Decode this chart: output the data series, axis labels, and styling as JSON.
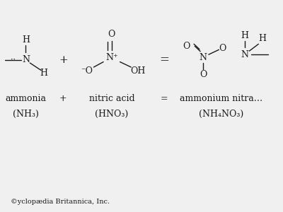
{
  "bg_color": "#f0f0f0",
  "text_color": "#1a1a1a",
  "footer": "©yclopædia Britannica, Inc.",
  "label1_line1": "ammonia",
  "label1_line2": "(NH₃)",
  "plus1": "+",
  "label2_line1": "nitric acid",
  "label2_line2": "(HNO₃)",
  "equals": "=",
  "label3_line1": "ammonium nitra…",
  "label3_line2": "(NH₄NO₃)",
  "font_size_struct": 9,
  "font_size_label": 9,
  "font_size_footer": 7
}
